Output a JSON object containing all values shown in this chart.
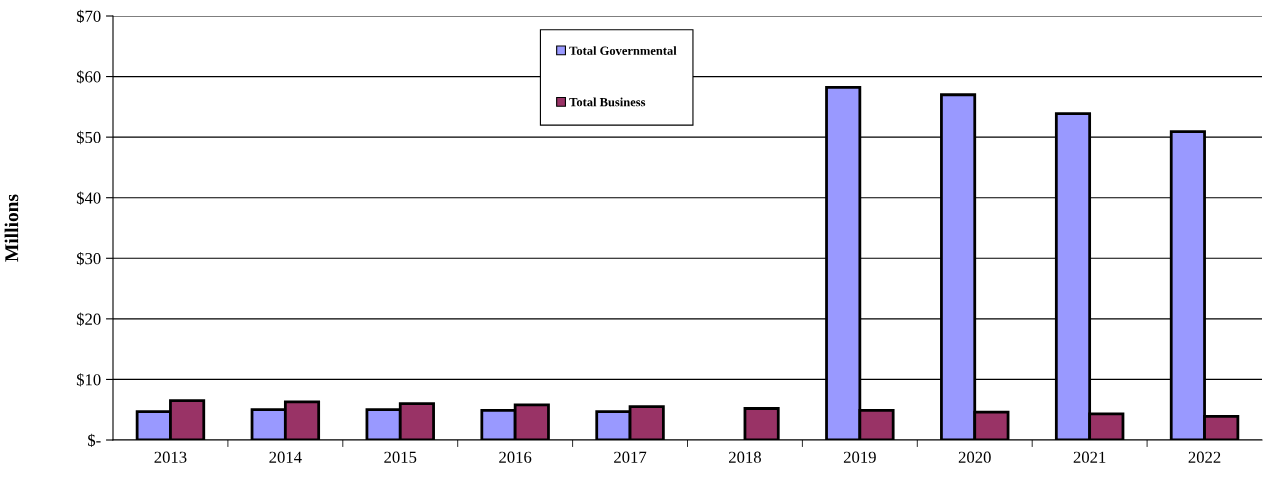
{
  "chart_data": {
    "type": "bar",
    "ylabel": "Millions",
    "categories": [
      "2013",
      "2014",
      "2015",
      "2016",
      "2017",
      "2018",
      "2019",
      "2020",
      "2021",
      "2022"
    ],
    "series": [
      {
        "name": "Total Governmental",
        "color": "#9999ff",
        "values": [
          4.7,
          5.0,
          5.0,
          4.9,
          4.7,
          null,
          58.2,
          57.0,
          53.9,
          50.9
        ]
      },
      {
        "name": "Total Business",
        "color": "#993366",
        "values": [
          6.5,
          6.3,
          6.0,
          5.8,
          5.5,
          5.2,
          4.9,
          4.6,
          4.3,
          3.9
        ]
      }
    ],
    "ylim": [
      0,
      70
    ],
    "yticks": [
      {
        "value": 0,
        "label": "$-"
      },
      {
        "value": 10,
        "label": "$10"
      },
      {
        "value": 20,
        "label": "$20"
      },
      {
        "value": 30,
        "label": "$30"
      },
      {
        "value": 40,
        "label": "$40"
      },
      {
        "value": 50,
        "label": "$50"
      },
      {
        "value": 60,
        "label": "$60"
      },
      {
        "value": 70,
        "label": "$70"
      }
    ],
    "grid": "y",
    "legend": "top"
  }
}
